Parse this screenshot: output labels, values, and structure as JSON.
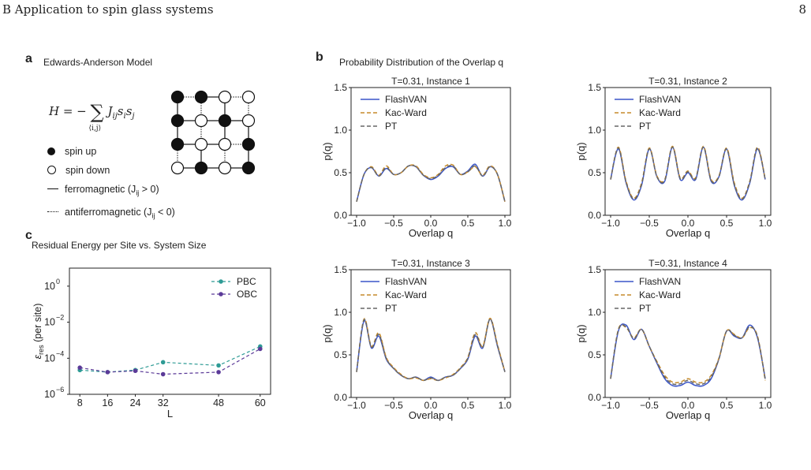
{
  "header": {
    "section": "B   Application to spin glass systems",
    "page_number": "8"
  },
  "panel_a": {
    "label": "a",
    "title": "Edwards-Anderson Model",
    "hamiltonian": {
      "lhs": "H = −",
      "sum": "∑",
      "sub": "⟨i,j⟩",
      "rhs": "J",
      "rhs_sub": "ij",
      "tail": "s",
      "i": "i",
      "s2": "s",
      "j": "j"
    },
    "legend": {
      "spin_up": "spin up",
      "spin_down": "spin down",
      "ferro": "ferromagnetic (J",
      "ferro_sub": "ij",
      "ferro_tail": " > 0)",
      "antiferro": "antiferromagnetic (J",
      "antiferro_sub": "ij",
      "antiferro_tail": " < 0)"
    },
    "lattice": {
      "spins": [
        [
          1,
          1,
          0,
          0
        ],
        [
          1,
          0,
          1,
          0
        ],
        [
          1,
          0,
          0,
          1
        ],
        [
          0,
          1,
          0,
          1
        ]
      ],
      "h_bonds": [
        [
          "anti",
          "ferro",
          "anti"
        ],
        [
          "ferro",
          "ferro",
          "ferro"
        ],
        [
          "ferro",
          "ferro",
          "anti"
        ],
        [
          "ferro",
          "ferro",
          "ferro"
        ]
      ],
      "v_bonds": [
        [
          "ferro",
          "anti",
          "ferro",
          "anti"
        ],
        [
          "ferro",
          "anti",
          "ferro",
          "ferro"
        ],
        [
          "anti",
          "ferro",
          "anti",
          "ferro"
        ]
      ]
    }
  },
  "panel_b": {
    "label": "b",
    "title": "Probability Distribution of the Overlap q",
    "xlabel": "Overlap q",
    "ylabel": "p(q)",
    "legend": [
      "FlashVAN",
      "Kac-Ward",
      "PT"
    ],
    "colors": {
      "FlashVAN": "#3a55c8",
      "Kac-Ward": "#c58a2a",
      "PT": "#666666"
    }
  },
  "panel_c": {
    "label": "c",
    "title": "Residual Energy per Site vs. System Size",
    "colors": {
      "PBC": "#2e9b95",
      "OBC": "#5b3a98"
    }
  },
  "chart_data": [
    {
      "type": "line",
      "title": "T=0.31, Instance 1",
      "xlabel": "Overlap q",
      "ylabel": "p(q)",
      "xlim": [
        -1.0,
        1.0
      ],
      "ylim": [
        0.0,
        1.5
      ],
      "xticks": [
        "−1.0",
        "−0.5",
        "0.0",
        "0.5",
        "1.0"
      ],
      "yticks": [
        "0.0",
        "0.5",
        "1.0",
        "1.5"
      ],
      "x": [
        -1.0,
        -0.9,
        -0.8,
        -0.7,
        -0.6,
        -0.5,
        -0.4,
        -0.3,
        -0.2,
        -0.1,
        0.0,
        0.1,
        0.2,
        0.3,
        0.4,
        0.5,
        0.6,
        0.7,
        0.8,
        0.9,
        1.0
      ],
      "series": [
        {
          "name": "FlashVAN",
          "values": [
            0.16,
            0.48,
            0.56,
            0.46,
            0.55,
            0.48,
            0.5,
            0.58,
            0.57,
            0.47,
            0.42,
            0.46,
            0.55,
            0.57,
            0.48,
            0.52,
            0.6,
            0.46,
            0.57,
            0.48,
            0.16
          ]
        },
        {
          "name": "Kac-Ward",
          "values": [
            0.16,
            0.48,
            0.57,
            0.47,
            0.58,
            0.48,
            0.5,
            0.58,
            0.58,
            0.48,
            0.44,
            0.48,
            0.58,
            0.59,
            0.48,
            0.51,
            0.57,
            0.47,
            0.58,
            0.48,
            0.16
          ]
        },
        {
          "name": "PT",
          "values": [
            0.16,
            0.48,
            0.56,
            0.46,
            0.56,
            0.48,
            0.5,
            0.58,
            0.57,
            0.47,
            0.43,
            0.47,
            0.56,
            0.58,
            0.48,
            0.51,
            0.58,
            0.46,
            0.57,
            0.48,
            0.16
          ]
        }
      ]
    },
    {
      "type": "line",
      "title": "T=0.31, Instance 2",
      "xlabel": "Overlap q",
      "ylabel": "p(q)",
      "xlim": [
        -1.0,
        1.0
      ],
      "ylim": [
        0.0,
        1.5
      ],
      "xticks": [
        "−1.0",
        "−0.5",
        "0.0",
        "0.5",
        "1.0"
      ],
      "yticks": [
        "0.0",
        "0.5",
        "1.0",
        "1.5"
      ],
      "x": [
        -1.0,
        -0.9,
        -0.8,
        -0.7,
        -0.6,
        -0.5,
        -0.4,
        -0.3,
        -0.2,
        -0.1,
        0.0,
        0.1,
        0.2,
        0.3,
        0.4,
        0.5,
        0.6,
        0.7,
        0.8,
        0.9,
        1.0
      ],
      "series": [
        {
          "name": "FlashVAN",
          "values": [
            0.42,
            0.78,
            0.38,
            0.18,
            0.35,
            0.78,
            0.45,
            0.4,
            0.8,
            0.42,
            0.5,
            0.42,
            0.8,
            0.4,
            0.45,
            0.78,
            0.35,
            0.18,
            0.38,
            0.78,
            0.42
          ]
        },
        {
          "name": "Kac-Ward",
          "values": [
            0.42,
            0.8,
            0.4,
            0.2,
            0.38,
            0.79,
            0.46,
            0.42,
            0.81,
            0.44,
            0.52,
            0.44,
            0.81,
            0.42,
            0.46,
            0.79,
            0.38,
            0.2,
            0.4,
            0.8,
            0.42
          ]
        },
        {
          "name": "PT",
          "values": [
            0.42,
            0.79,
            0.39,
            0.19,
            0.36,
            0.78,
            0.45,
            0.41,
            0.8,
            0.43,
            0.51,
            0.43,
            0.8,
            0.41,
            0.45,
            0.78,
            0.36,
            0.19,
            0.39,
            0.79,
            0.42
          ]
        }
      ]
    },
    {
      "type": "line",
      "title": "T=0.31, Instance 3",
      "xlabel": "Overlap q",
      "ylabel": "p(q)",
      "xlim": [
        -1.0,
        1.0
      ],
      "ylim": [
        0.0,
        1.5
      ],
      "xticks": [
        "−1.0",
        "−0.5",
        "0.0",
        "0.5",
        "1.0"
      ],
      "yticks": [
        "0.0",
        "0.5",
        "1.0",
        "1.5"
      ],
      "x": [
        -1.0,
        -0.9,
        -0.8,
        -0.7,
        -0.6,
        -0.5,
        -0.4,
        -0.3,
        -0.2,
        -0.1,
        0.0,
        0.1,
        0.2,
        0.3,
        0.4,
        0.5,
        0.6,
        0.7,
        0.8,
        0.9,
        1.0
      ],
      "series": [
        {
          "name": "FlashVAN",
          "values": [
            0.3,
            0.9,
            0.58,
            0.72,
            0.45,
            0.34,
            0.26,
            0.22,
            0.24,
            0.2,
            0.24,
            0.2,
            0.24,
            0.26,
            0.34,
            0.45,
            0.72,
            0.58,
            0.92,
            0.6,
            0.3
          ]
        },
        {
          "name": "Kac-Ward",
          "values": [
            0.3,
            0.92,
            0.6,
            0.76,
            0.47,
            0.35,
            0.27,
            0.22,
            0.23,
            0.2,
            0.22,
            0.2,
            0.23,
            0.27,
            0.35,
            0.47,
            0.76,
            0.6,
            0.93,
            0.62,
            0.3
          ]
        },
        {
          "name": "PT",
          "values": [
            0.3,
            0.91,
            0.59,
            0.74,
            0.46,
            0.34,
            0.26,
            0.22,
            0.24,
            0.2,
            0.23,
            0.2,
            0.24,
            0.26,
            0.34,
            0.46,
            0.74,
            0.59,
            0.92,
            0.61,
            0.3
          ]
        }
      ]
    },
    {
      "type": "line",
      "title": "T=0.31, Instance 4",
      "xlabel": "Overlap q",
      "ylabel": "p(q)",
      "xlim": [
        -1.0,
        1.0
      ],
      "ylim": [
        0.0,
        1.5
      ],
      "xticks": [
        "−1.0",
        "−0.5",
        "0.0",
        "0.5",
        "1.0"
      ],
      "yticks": [
        "0.0",
        "0.5",
        "1.0",
        "1.5"
      ],
      "x": [
        -1.0,
        -0.9,
        -0.8,
        -0.7,
        -0.6,
        -0.5,
        -0.4,
        -0.3,
        -0.2,
        -0.1,
        0.0,
        0.1,
        0.2,
        0.3,
        0.4,
        0.5,
        0.6,
        0.7,
        0.8,
        0.9,
        1.0
      ],
      "series": [
        {
          "name": "FlashVAN",
          "values": [
            0.22,
            0.78,
            0.85,
            0.68,
            0.8,
            0.6,
            0.4,
            0.22,
            0.14,
            0.14,
            0.18,
            0.14,
            0.14,
            0.22,
            0.45,
            0.78,
            0.72,
            0.7,
            0.85,
            0.7,
            0.22
          ]
        },
        {
          "name": "Kac-Ward",
          "values": [
            0.22,
            0.8,
            0.82,
            0.7,
            0.8,
            0.6,
            0.42,
            0.26,
            0.18,
            0.18,
            0.22,
            0.18,
            0.18,
            0.26,
            0.46,
            0.78,
            0.74,
            0.7,
            0.82,
            0.72,
            0.2
          ]
        },
        {
          "name": "PT",
          "values": [
            0.22,
            0.79,
            0.83,
            0.69,
            0.8,
            0.6,
            0.41,
            0.24,
            0.16,
            0.16,
            0.2,
            0.16,
            0.16,
            0.24,
            0.45,
            0.78,
            0.73,
            0.7,
            0.83,
            0.71,
            0.21
          ]
        }
      ]
    },
    {
      "type": "line",
      "title": "",
      "xlabel": "L",
      "ylabel": "ε_res (per site)",
      "ylabel_main": "ε",
      "ylabel_sub": "res",
      "ylabel_tail": " (per site)",
      "log_y": true,
      "ylim_exp": [
        -6,
        1
      ],
      "xlim": [
        5,
        63
      ],
      "xticks": [
        8,
        16,
        24,
        32,
        48,
        60
      ],
      "yticks": [
        {
          "base": "10",
          "exp": "0",
          "value": 0
        },
        {
          "base": "10",
          "exp": "−2",
          "value": -2
        },
        {
          "base": "10",
          "exp": "−4",
          "value": -4
        },
        {
          "base": "10",
          "exp": "−6",
          "value": -6
        }
      ],
      "legend_position": "top-right",
      "categories": [
        8,
        16,
        24,
        32,
        48,
        60
      ],
      "series": [
        {
          "name": "PBC",
          "values": [
            2.2e-05,
            1.7e-05,
            2.2e-05,
            6e-05,
            4e-05,
            0.00045
          ]
        },
        {
          "name": "OBC",
          "values": [
            3e-05,
            1.7e-05,
            2e-05,
            1.3e-05,
            1.7e-05,
            0.00033
          ]
        }
      ]
    }
  ]
}
